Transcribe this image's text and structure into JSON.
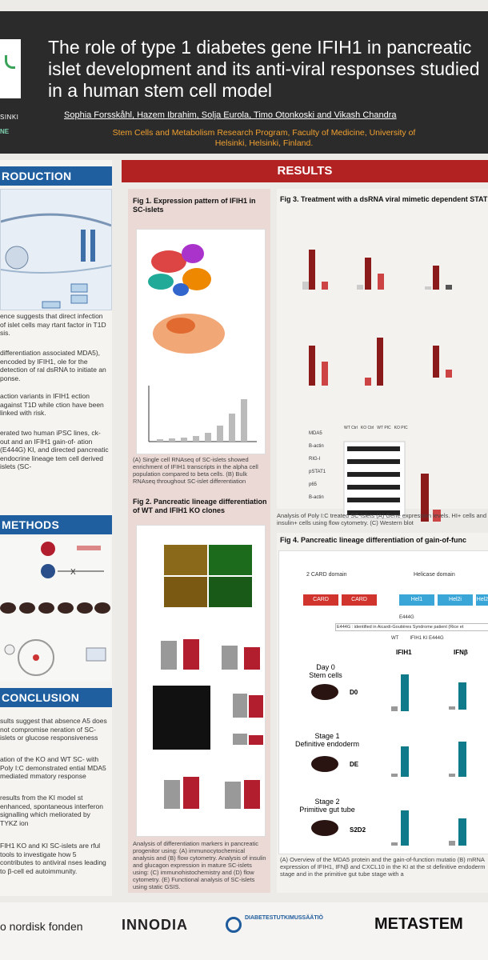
{
  "header": {
    "title": "The role of type 1 diabetes gene IFIH1 in pancreatic islet development and its anti-viral responses studied in a human stem cell model",
    "authors": "Sophia Forsskåhl, Hazem Ibrahim, Solja Eurola, Timo Otonkoski and Vikash Chandra",
    "affiliation": "Stem Cells and Metabolism Research Program, Faculty of Medicine, University of Helsinki, Helsinki, Finland.",
    "logo_text_1": "SINKI",
    "logo_text_2": "NE"
  },
  "left": {
    "intro_head": "RODUCTION",
    "intro_p1": "ence suggests that direct infection of islet cells may rtant factor in T1D sis.",
    "intro_p2": "differentiation associated MDA5), encoded by IFIH1, ole for the detection of ral dsRNA to initiate an ponse.",
    "intro_p3": "action variants in IFIH1 ection against T1D while ction have been linked with risk.",
    "intro_p4": "erated two human iPSC lines, ck-out and an IFIH1 gain-of- ation (E444G) KI, and directed pancreatic endocrine lineage tem cell derived islets (SC-",
    "methods_head": "METHODS",
    "conclusion_head": "CONCLUSION",
    "concl_p1": "sults suggest that absence A5 does not compromise neration of SC-islets or glucose responsiveness",
    "concl_p2": "ation of the KO and WT SC- with Poly I:C demonstrated ential MDA5 mediated mmatory response",
    "concl_p3": "results from the KI model st enhanced, spontaneous interferon signalling which meliorated by TYKZ ion",
    "concl_p4": "FIH1 KO and KI SC-islets are rful tools to investigate how 5 contributes to antiviral nses leading to β-cell ed autoimmunity."
  },
  "results": {
    "head": "RESULTS",
    "fig1_title": "Fig 1. Expression pattern of IFIH1 in SC-islets",
    "fig1_caption": "(A) Single cell RNAseq of SC-islets showed enrichment of IFIH1 transcripts in the alpha cell population compared to beta cells. (B) Bulk RNAseq throughout SC-islet differentiation",
    "fig2_title": "Fig 2. Pancreatic lineage differentiation of WT and IFIH1 KO clones",
    "fig2_caption": "Analysis of differentiation markers in pancreatic progenitor using: (A) immunocytochemical analysis and (B) flow cytometry. Analysis of insulin and glucagon expression in mature SC-islets using: (C) immunohistochemistry and (D) flow cytometry. (E) Functional analysis of SC-islets using static GSIS.",
    "fig3_title": "Fig 3. Treatment with a dsRNA viral mimetic dependent STAT1-mediated induction of CXCL10 an",
    "fig3_caption": "Analysis of Poly I:C treated SC-islets (A) Gene expression levels. HI+ cells and insulin+ cells using flow cytometry. (C) Western blot",
    "fig3_blot_labels": [
      "MDA5",
      "B-actin",
      "RIG-I",
      "pSTAT1",
      "p65",
      "B-actin"
    ],
    "fig3_blot_cols": [
      "WT Ctrl",
      "KO Ctrl",
      "WT PIC",
      "KO PIC"
    ],
    "fig4_title": "Fig 4. Pancreatic lineage differentiation of gain-of-func",
    "fig4_domains": [
      "2 CARD domain",
      "Helicase domain"
    ],
    "fig4_blocks": [
      "CARD",
      "CARD",
      "Hel1",
      "Hel2i",
      "Hel2"
    ],
    "fig4_mutation": "E444G",
    "fig4_note": "E444G : identified in Aicardi-Goutières Syndrome patient (Rice et",
    "fig4_legend": [
      "WT",
      "IFIH1 KI E444G"
    ],
    "fig4_genes": [
      "IFIH1",
      "IFNβ"
    ],
    "fig4_stages": [
      {
        "name": "Day 0",
        "sub": "Stem cells",
        "code": "D0"
      },
      {
        "name": "Stage 1",
        "sub": "Definitive endoderm",
        "code": "DE"
      },
      {
        "name": "Stage 2",
        "sub": "Primitive gut tube",
        "code": "S2D2"
      }
    ],
    "fig4_caption": "(A) Overview of the MDA5 protein and the gain-of-function mutatio (B) mRNA expression of IFIH1, IFNβ and CXCL10 in the KI at the st definitive endoderm stage and in the primitive gut tube stage with a"
  },
  "footer": {
    "sponsors": [
      "o nordisk fonden",
      "INNODIA",
      "DIABETESTUTKIMUSSÄÄTIÖ",
      "METASTEM"
    ]
  }
}
